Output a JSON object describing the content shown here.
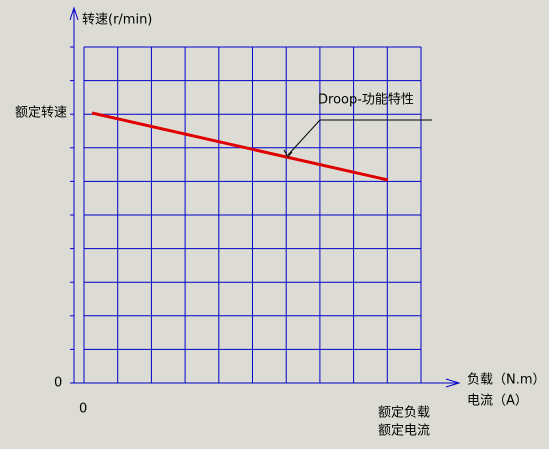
{
  "y_axis_label": "转速(r/min)",
  "rated_speed_label": "额定转速",
  "y_origin_label": "0",
  "x_origin_label": "0",
  "x_axis_label_load": "负载（N.m）",
  "x_axis_label_current": "电流（A）",
  "rated_load_label": "额定负载",
  "rated_current_label": "额定电流",
  "annotation": "Droop-功能特性"
}
